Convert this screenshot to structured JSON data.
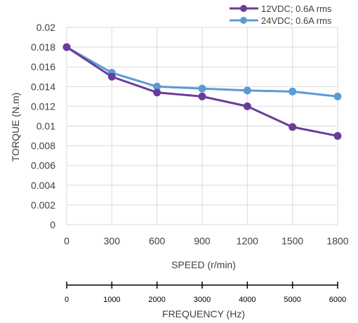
{
  "chart_data": {
    "type": "line",
    "x": [
      0,
      300,
      600,
      900,
      1200,
      1500,
      1800
    ],
    "x_tick_labels": [
      "0",
      "300",
      "600",
      "900",
      "1200",
      "1500",
      "1800"
    ],
    "xlabel": "SPEED (r/min)",
    "ylabel": "TORQUE (N.m)",
    "ylim": [
      0,
      0.02
    ],
    "y_tick_labels": [
      "0",
      "0.002",
      "0.004",
      "0.006",
      "0.008",
      "0.01",
      "0.012",
      "0.014",
      "0.016",
      "0.018",
      "0.02"
    ],
    "grid": true,
    "legend_position": "top-right",
    "series": [
      {
        "name": "12VDC; 0.6A rms",
        "color": "#6a3d9a",
        "values": [
          0.018,
          0.015,
          0.0134,
          0.013,
          0.012,
          0.0099,
          0.009
        ]
      },
      {
        "name": "24VDC; 0.6A rms",
        "color": "#5b9bd5",
        "values": [
          0.018,
          0.0154,
          0.014,
          0.0138,
          0.0136,
          0.0135,
          0.013
        ]
      }
    ],
    "secondary_axis": {
      "xlabel": "FREQUENCY (Hz)",
      "x_tick_labels": [
        "0",
        "1000",
        "2000",
        "3000",
        "4000",
        "5000",
        "6000"
      ]
    }
  }
}
